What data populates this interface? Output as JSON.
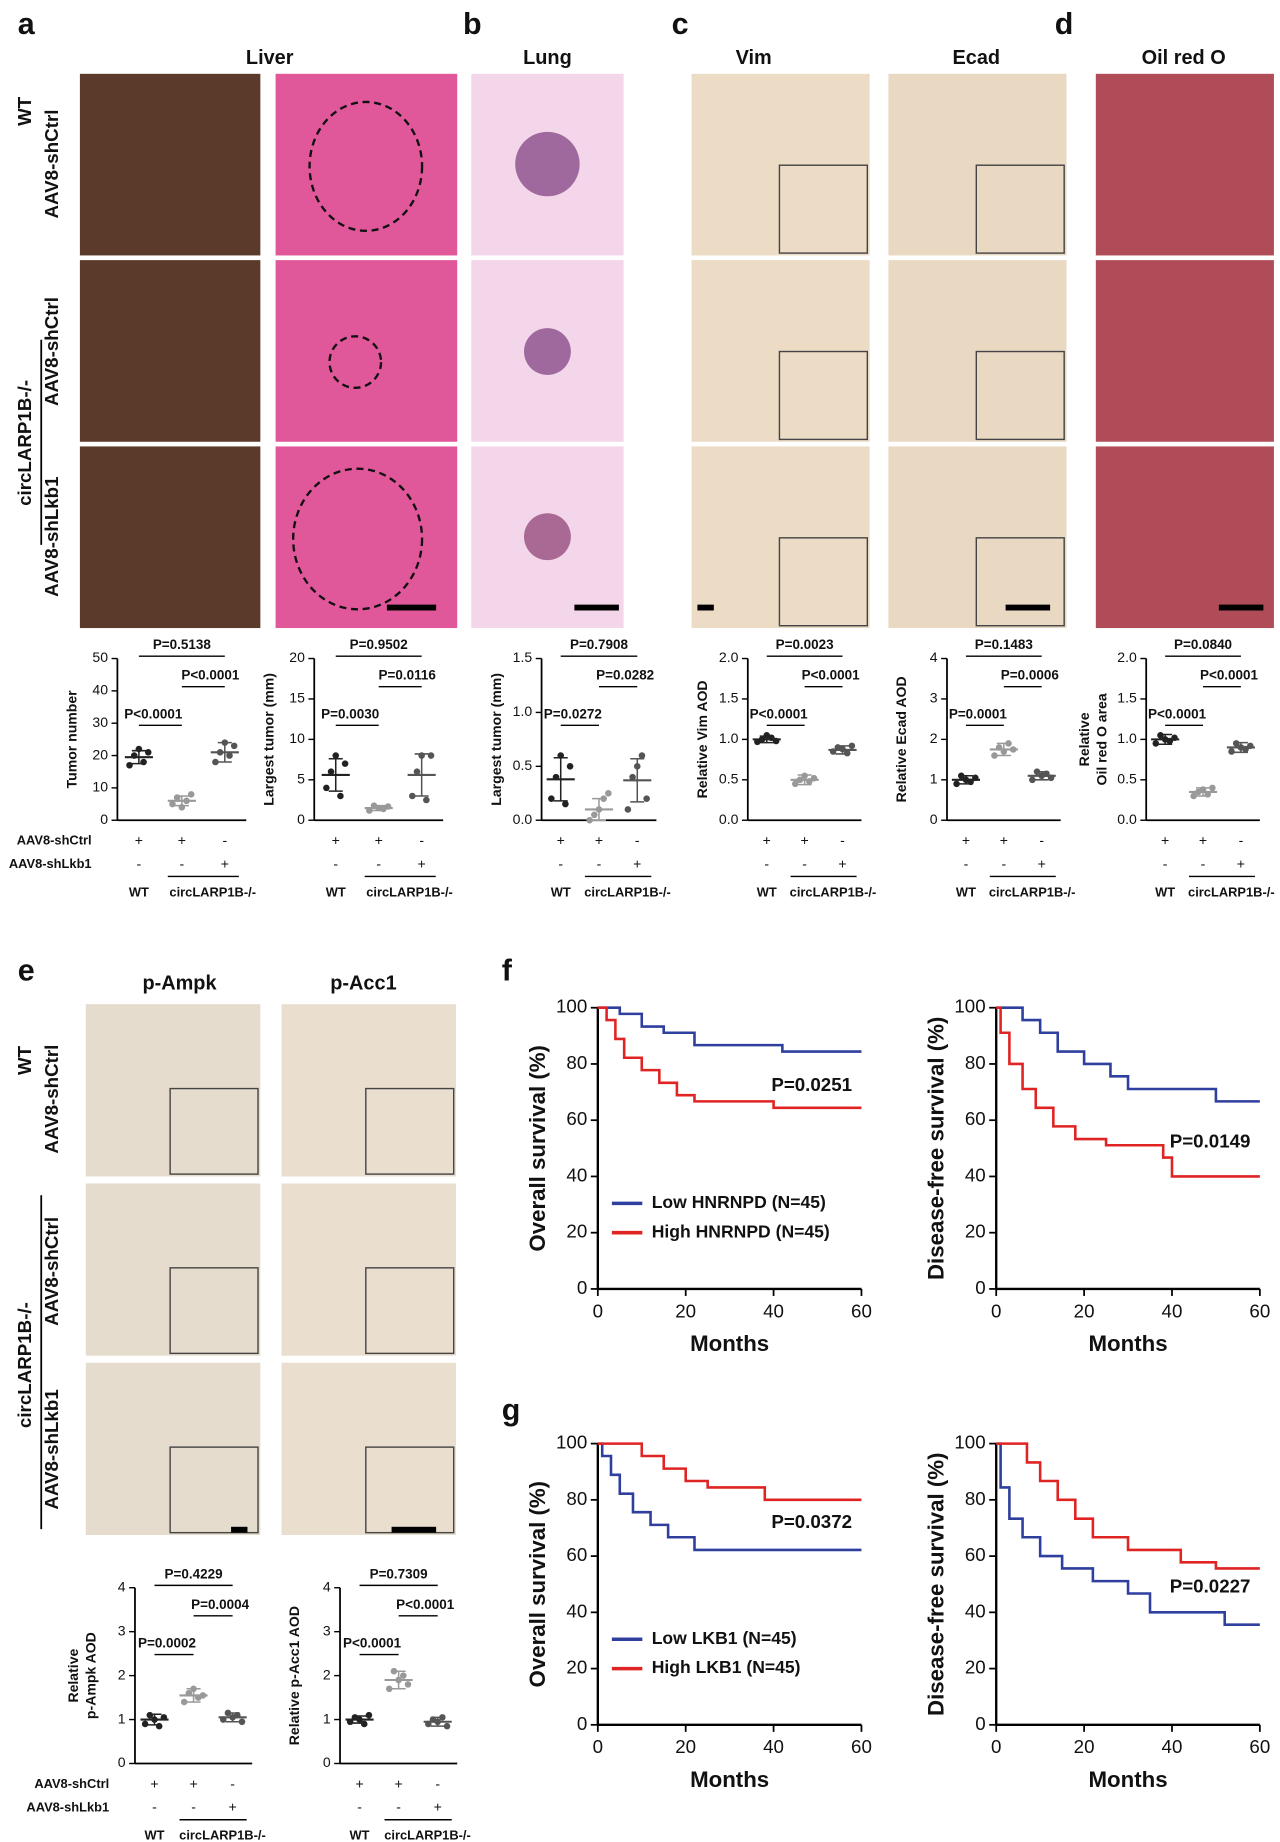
{
  "figure": {
    "panels": [
      "a",
      "b",
      "c",
      "d",
      "e",
      "f",
      "g"
    ],
    "headers": [
      "Liver",
      "Lung",
      "Vim",
      "Ecad",
      "Oil red O",
      "p-Ampk",
      "p-Acc1"
    ],
    "row_labels_a": [
      "WT",
      "AAV8-shCtrl",
      "circLARP1B-/-",
      "AAV8-shCtrl",
      "AAV8-shLkb1"
    ],
    "row_labels_e": [
      "WT",
      "AAV8-shCtrl",
      "circLARP1B-/-",
      "AAV8-shCtrl",
      "AAV8-shLkb1"
    ]
  },
  "chart_data": [
    {
      "type": "dot",
      "ylabel": "Tumor number",
      "ylim": [
        0,
        50
      ],
      "yticks": [
        0,
        10,
        20,
        30,
        40,
        50
      ],
      "comparisons": [
        "P=0.5138",
        "P<0.0001",
        "P<0.0001"
      ],
      "conditions": [
        "AAV8-shCtrl",
        "AAV8-shLkb1"
      ],
      "signs": [
        [
          "+",
          "+",
          "-"
        ],
        [
          "-",
          "-",
          "+"
        ]
      ],
      "groups": [
        "WT",
        "circLARP1B-/-"
      ],
      "series": [
        {
          "color": "#222222",
          "values": [
            17,
            20,
            22,
            18,
            21
          ],
          "mean": 19.5,
          "sd": 2
        },
        {
          "color": "#999999",
          "values": [
            5,
            7,
            4,
            6,
            8
          ],
          "mean": 6,
          "sd": 1.5
        },
        {
          "color": "#555555",
          "values": [
            18,
            21,
            24,
            20,
            23
          ],
          "mean": 21,
          "sd": 3
        }
      ]
    },
    {
      "type": "dot",
      "ylabel": "Largest tumor (mm)",
      "ylim": [
        0,
        20
      ],
      "yticks": [
        0,
        5,
        10,
        15,
        20
      ],
      "comparisons": [
        "P=0.9502",
        "P=0.0116",
        "P=0.0030"
      ],
      "signs": [
        [
          "+",
          "+",
          "-"
        ],
        [
          "-",
          "-",
          "+"
        ]
      ],
      "groups": [
        "WT",
        "circLARP1B-/-"
      ],
      "series": [
        {
          "color": "#222222",
          "values": [
            4,
            6,
            8,
            3,
            7
          ],
          "mean": 5.6,
          "sd": 2
        },
        {
          "color": "#999999",
          "values": [
            1.2,
            1.8,
            1.5,
            1.4,
            1.7
          ],
          "mean": 1.5,
          "sd": 0.3
        },
        {
          "color": "#555555",
          "values": [
            3,
            6,
            8,
            2.5,
            8
          ],
          "mean": 5.6,
          "sd": 2.6
        }
      ]
    },
    {
      "type": "dot",
      "ylabel": "Largest tumor (mm)",
      "ylim": [
        0,
        1.5
      ],
      "yticks": [
        {
          "value": 0,
          "label": "0.0"
        },
        {
          "value": 0.5,
          "label": "0.5"
        },
        {
          "value": 1,
          "label": "1.0"
        },
        {
          "value": 1.5,
          "label": "1.5"
        }
      ],
      "comparisons": [
        "P=0.7908",
        "P=0.0282",
        "P=0.0272"
      ],
      "signs": [
        [
          "+",
          "+",
          "-"
        ],
        [
          "-",
          "-",
          "+"
        ]
      ],
      "groups": [
        "WT",
        "circLARP1B-/-"
      ],
      "series": [
        {
          "color": "#222222",
          "values": [
            0.2,
            0.4,
            0.6,
            0.15,
            0.5
          ],
          "mean": 0.38,
          "sd": 0.2
        },
        {
          "color": "#999999",
          "values": [
            0,
            0.05,
            0.1,
            0.2,
            0.25
          ],
          "mean": 0.1,
          "sd": 0.1
        },
        {
          "color": "#555555",
          "values": [
            0.1,
            0.4,
            0.5,
            0.6,
            0.2
          ],
          "mean": 0.37,
          "sd": 0.2
        }
      ]
    },
    {
      "type": "dot",
      "ylabel": "Relative Vim AOD",
      "ylim": [
        0,
        2
      ],
      "yticks": [
        {
          "value": 0,
          "label": "0.0"
        },
        {
          "value": 0.5,
          "label": "0.5"
        },
        {
          "value": 1,
          "label": "1.0"
        },
        {
          "value": 1.5,
          "label": "1.5"
        },
        {
          "value": 2,
          "label": "2.0"
        }
      ],
      "comparisons": [
        "P=0.0023",
        "P<0.0001",
        "P<0.0001"
      ],
      "signs": [
        [
          "+",
          "+",
          "-"
        ],
        [
          "-",
          "-",
          "+"
        ]
      ],
      "groups": [
        "WT",
        "circLARP1B-/-"
      ],
      "series": [
        {
          "color": "#222222",
          "values": [
            0.97,
            1.0,
            1.05,
            1.02,
            0.98
          ],
          "mean": 1.0,
          "sd": 0.04
        },
        {
          "color": "#999999",
          "values": [
            0.45,
            0.5,
            0.55,
            0.48,
            0.52
          ],
          "mean": 0.5,
          "sd": 0.06
        },
        {
          "color": "#555555",
          "values": [
            0.85,
            0.9,
            0.88,
            0.83,
            0.92
          ],
          "mean": 0.87,
          "sd": 0.05
        }
      ]
    },
    {
      "type": "dot",
      "ylabel": "Relative Ecad AOD",
      "ylim": [
        0,
        4
      ],
      "yticks": [
        0,
        1,
        2,
        3,
        4
      ],
      "comparisons": [
        "P=0.1483",
        "P=0.0006",
        "P=0.0001"
      ],
      "signs": [
        [
          "+",
          "+",
          "-"
        ],
        [
          "-",
          "-",
          "+"
        ]
      ],
      "groups": [
        "WT",
        "circLARP1B-/-"
      ],
      "series": [
        {
          "color": "#222222",
          "values": [
            0.9,
            1.1,
            1.0,
            0.95,
            1.05
          ],
          "mean": 1.0,
          "sd": 0.1
        },
        {
          "color": "#999999",
          "values": [
            1.6,
            1.8,
            1.7,
            1.9,
            1.75
          ],
          "mean": 1.75,
          "sd": 0.15
        },
        {
          "color": "#555555",
          "values": [
            1.0,
            1.2,
            1.1,
            1.15,
            1.05
          ],
          "mean": 1.1,
          "sd": 0.1
        }
      ]
    },
    {
      "type": "dot",
      "ylabel": [
        "Relative",
        "Oil red O area"
      ],
      "ylim": [
        0,
        2
      ],
      "yticks": [
        {
          "value": 0,
          "label": "0.0"
        },
        {
          "value": 0.5,
          "label": "0.5"
        },
        {
          "value": 1,
          "label": "1.0"
        },
        {
          "value": 1.5,
          "label": "1.5"
        },
        {
          "value": 2,
          "label": "2.0"
        }
      ],
      "comparisons": [
        "P=0.0840",
        "P<0.0001",
        "P<0.0001"
      ],
      "signs": [
        [
          "+",
          "+",
          "-"
        ],
        [
          "-",
          "-",
          "+"
        ]
      ],
      "groups": [
        "WT",
        "circLARP1B-/-"
      ],
      "series": [
        {
          "color": "#222222",
          "values": [
            0.95,
            1.05,
            1.0,
            0.98,
            1.02
          ],
          "mean": 1.0,
          "sd": 0.06
        },
        {
          "color": "#999999",
          "values": [
            0.3,
            0.35,
            0.38,
            0.32,
            0.4
          ],
          "mean": 0.35,
          "sd": 0.05
        },
        {
          "color": "#555555",
          "values": [
            0.85,
            0.95,
            0.9,
            0.88,
            0.92
          ],
          "mean": 0.9,
          "sd": 0.06
        }
      ]
    },
    {
      "type": "dot",
      "ylabel": [
        "Relative",
        "p-Ampk AOD"
      ],
      "ylim": [
        0,
        4
      ],
      "yticks": [
        0,
        1,
        2,
        3,
        4
      ],
      "comparisons": [
        "P=0.4229",
        "P=0.0004",
        "P=0.0002"
      ],
      "conditions": [
        "AAV8-shCtrl",
        "AAV8-shLkb1"
      ],
      "signs": [
        [
          "+",
          "+",
          "-"
        ],
        [
          "-",
          "-",
          "+"
        ]
      ],
      "groups": [
        "WT",
        "circLARP1B-/-"
      ],
      "series": [
        {
          "color": "#222222",
          "values": [
            0.9,
            1.1,
            1.0,
            0.85,
            1.05
          ],
          "mean": 1.0,
          "sd": 0.12
        },
        {
          "color": "#999999",
          "values": [
            1.4,
            1.6,
            1.7,
            1.5,
            1.55
          ],
          "mean": 1.55,
          "sd": 0.15
        },
        {
          "color": "#555555",
          "values": [
            1.0,
            1.15,
            1.05,
            1.1,
            0.95
          ],
          "mean": 1.05,
          "sd": 0.1
        }
      ]
    },
    {
      "type": "dot",
      "ylabel": "Relative p-Acc1 AOD",
      "ylim": [
        0,
        4
      ],
      "yticks": [
        0,
        1,
        2,
        3,
        4
      ],
      "comparisons": [
        "P=0.7309",
        "P<0.0001",
        "P<0.0001"
      ],
      "signs": [
        [
          "+",
          "+",
          "-"
        ],
        [
          "-",
          "-",
          "+"
        ]
      ],
      "groups": [
        "WT",
        "circLARP1B-/-"
      ],
      "series": [
        {
          "color": "#222222",
          "values": [
            0.95,
            1.05,
            1.0,
            0.9,
            1.1
          ],
          "mean": 1.0,
          "sd": 0.08
        },
        {
          "color": "#999999",
          "values": [
            1.7,
            2.1,
            1.9,
            2.0,
            1.8
          ],
          "mean": 1.9,
          "sd": 0.2
        },
        {
          "color": "#555555",
          "values": [
            0.9,
            1.0,
            0.95,
            1.05,
            0.85
          ],
          "mean": 0.95,
          "sd": 0.1
        }
      ]
    },
    {
      "type": "line",
      "xlabel": "Months",
      "ylabel": "Overall survival (%)",
      "xlim": [
        0,
        60
      ],
      "xticks": [
        0,
        20,
        40,
        60
      ],
      "ylim": [
        0,
        100
      ],
      "yticks": [
        0,
        20,
        40,
        60,
        80,
        100
      ],
      "annotation": "P=0.0251",
      "legend": "lower left",
      "series": [
        {
          "name": "Low HNRNPD (N=45)",
          "color": "#2e3f9e",
          "x": [
            0,
            5,
            5,
            10,
            10,
            15,
            15,
            22,
            22,
            42,
            42,
            60
          ],
          "values": [
            100,
            100,
            97.8,
            97.8,
            93.3,
            93.3,
            91.1,
            91.1,
            86.7,
            86.7,
            84.4,
            84.4
          ]
        },
        {
          "name": "High HNRNPD (N=45)",
          "color": "#e02424",
          "x": [
            0,
            2,
            2,
            4,
            4,
            6,
            6,
            10,
            10,
            14,
            14,
            18,
            18,
            22,
            22,
            40,
            40,
            60
          ],
          "values": [
            100,
            100,
            95.6,
            95.6,
            88.9,
            88.9,
            82.2,
            82.2,
            77.8,
            77.8,
            73.3,
            73.3,
            68.9,
            68.9,
            66.7,
            66.7,
            64.4,
            64.4
          ]
        }
      ]
    },
    {
      "type": "line",
      "xlabel": "Months",
      "ylabel": "Disease-free survival (%)",
      "xlim": [
        0,
        60
      ],
      "xticks": [
        0,
        20,
        40,
        60
      ],
      "ylim": [
        0,
        100
      ],
      "yticks": [
        0,
        20,
        40,
        60,
        80,
        100
      ],
      "annotation": "P=0.0149",
      "series": [
        {
          "color": "#2e3f9e",
          "x": [
            0,
            6,
            6,
            10,
            10,
            14,
            14,
            20,
            20,
            26,
            26,
            30,
            30,
            50,
            50,
            60
          ],
          "values": [
            100,
            100,
            95.6,
            95.6,
            91.1,
            91.1,
            84.4,
            84.4,
            80,
            80,
            75.6,
            75.6,
            71.1,
            71.1,
            66.7,
            66.7
          ]
        },
        {
          "color": "#e02424",
          "x": [
            0,
            1,
            1,
            3,
            3,
            6,
            6,
            9,
            9,
            13,
            13,
            18,
            18,
            25,
            25,
            38,
            38,
            40,
            40,
            60
          ],
          "values": [
            100,
            100,
            91.1,
            91.1,
            80,
            80,
            71.1,
            71.1,
            64.4,
            64.4,
            57.8,
            57.8,
            53.3,
            53.3,
            51.1,
            51.1,
            46.7,
            46.7,
            40,
            40
          ]
        }
      ]
    },
    {
      "type": "line",
      "xlabel": "Months",
      "ylabel": "Overall survival (%)",
      "xlim": [
        0,
        60
      ],
      "xticks": [
        0,
        20,
        40,
        60
      ],
      "ylim": [
        0,
        100
      ],
      "yticks": [
        0,
        20,
        40,
        60,
        80,
        100
      ],
      "annotation": "P=0.0372",
      "legend": "lower left",
      "series": [
        {
          "name": "Low LKB1 (N=45)",
          "color": "#2e3f9e",
          "x": [
            0,
            1,
            1,
            3,
            3,
            5,
            5,
            8,
            8,
            12,
            12,
            16,
            16,
            22,
            22,
            60
          ],
          "values": [
            100,
            100,
            95.6,
            95.6,
            88.9,
            88.9,
            82.2,
            82.2,
            75.6,
            75.6,
            71.1,
            71.1,
            66.7,
            66.7,
            62.2,
            62.2
          ]
        },
        {
          "name": "High LKB1 (N=45)",
          "color": "#e02424",
          "x": [
            0,
            10,
            10,
            15,
            15,
            20,
            20,
            25,
            25,
            38,
            38,
            60
          ],
          "values": [
            100,
            100,
            95.6,
            95.6,
            91.1,
            91.1,
            86.7,
            86.7,
            84.4,
            84.4,
            80,
            80
          ]
        }
      ]
    },
    {
      "type": "line",
      "xlabel": "Months",
      "ylabel": "Disease-free survival (%)",
      "xlim": [
        0,
        60
      ],
      "xticks": [
        0,
        20,
        40,
        60
      ],
      "ylim": [
        0,
        100
      ],
      "yticks": [
        0,
        20,
        40,
        60,
        80,
        100
      ],
      "annotation": "P=0.0227",
      "series": [
        {
          "color": "#2e3f9e",
          "x": [
            0,
            1,
            1,
            3,
            3,
            6,
            6,
            10,
            10,
            15,
            15,
            22,
            22,
            30,
            30,
            35,
            35,
            52,
            52,
            60
          ],
          "values": [
            100,
            100,
            84.4,
            84.4,
            73.3,
            73.3,
            66.7,
            66.7,
            60,
            60,
            55.6,
            55.6,
            51.1,
            51.1,
            46.7,
            46.7,
            40,
            40,
            35.6,
            35.6
          ]
        },
        {
          "color": "#e02424",
          "x": [
            0,
            7,
            7,
            10,
            10,
            14,
            14,
            18,
            18,
            22,
            22,
            30,
            30,
            42,
            42,
            50,
            50,
            60
          ],
          "values": [
            100,
            100,
            93.3,
            93.3,
            86.7,
            86.7,
            80,
            80,
            73.3,
            73.3,
            66.7,
            66.7,
            62.2,
            62.2,
            57.8,
            57.8,
            55.6,
            55.6
          ]
        }
      ]
    }
  ]
}
